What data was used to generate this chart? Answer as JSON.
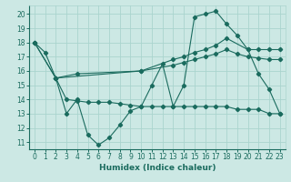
{
  "xlabel": "Humidex (Indice chaleur)",
  "bg_color": "#cce8e4",
  "line_color": "#1a6b5e",
  "grid_color": "#aad4ce",
  "xlim": [
    -0.5,
    23.5
  ],
  "ylim": [
    10.5,
    20.6
  ],
  "yticks": [
    11,
    12,
    13,
    14,
    15,
    16,
    17,
    18,
    19,
    20
  ],
  "xticks": [
    0,
    1,
    2,
    3,
    4,
    5,
    6,
    7,
    8,
    9,
    10,
    11,
    12,
    13,
    14,
    15,
    16,
    17,
    18,
    19,
    20,
    21,
    22,
    23
  ],
  "lines": [
    {
      "x": [
        0,
        1,
        2,
        3,
        4,
        5,
        6,
        7,
        8,
        9,
        10,
        11,
        12,
        13,
        14,
        15,
        16,
        17,
        18,
        19,
        20,
        21,
        22,
        23
      ],
      "y": [
        18.0,
        17.3,
        15.5,
        13.0,
        14.0,
        11.5,
        10.8,
        11.3,
        12.2,
        13.2,
        13.5,
        15.0,
        16.5,
        13.5,
        15.0,
        19.8,
        20.0,
        20.2,
        19.3,
        18.5,
        17.5,
        15.8,
        14.7,
        13.0
      ]
    },
    {
      "x": [
        0,
        2,
        10,
        13,
        14,
        15,
        16,
        17,
        18,
        20,
        21,
        22,
        23
      ],
      "y": [
        18.0,
        15.5,
        16.0,
        16.8,
        17.0,
        17.3,
        17.5,
        17.8,
        18.3,
        17.5,
        17.5,
        17.5,
        17.5
      ]
    },
    {
      "x": [
        0,
        2,
        4,
        10,
        13,
        14,
        15,
        16,
        17,
        18,
        19,
        20,
        21,
        22,
        23
      ],
      "y": [
        18.0,
        15.5,
        15.8,
        16.0,
        16.4,
        16.6,
        16.8,
        17.0,
        17.2,
        17.5,
        17.2,
        17.0,
        16.9,
        16.8,
        16.8
      ]
    },
    {
      "x": [
        2,
        3,
        4,
        5,
        6,
        7,
        8,
        9,
        10,
        11,
        12,
        13,
        14,
        15,
        16,
        17,
        18,
        19,
        20,
        21,
        22,
        23
      ],
      "y": [
        15.5,
        14.0,
        13.9,
        13.8,
        13.8,
        13.8,
        13.7,
        13.6,
        13.5,
        13.5,
        13.5,
        13.5,
        13.5,
        13.5,
        13.5,
        13.5,
        13.5,
        13.3,
        13.3,
        13.3,
        13.0,
        13.0
      ]
    }
  ]
}
